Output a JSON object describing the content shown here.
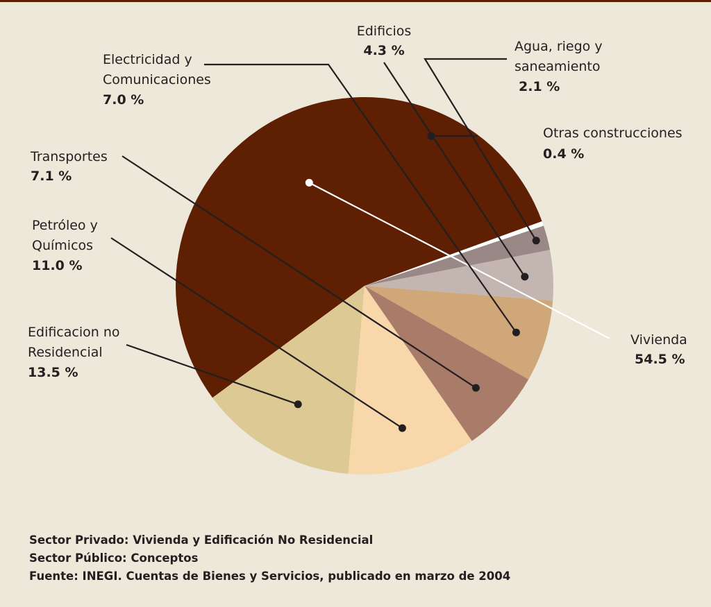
{
  "chart_data": {
    "type": "pie",
    "slices": [
      {
        "label_lines": [
          "Vivienda"
        ],
        "value_text": "54.5 %",
        "value": 54.5,
        "color": "#5e1f03"
      },
      {
        "label_lines": [
          "Edificacion no",
          "Residencial"
        ],
        "value_text": "13.5 %",
        "value": 13.5,
        "color": "#dcc993"
      },
      {
        "label_lines": [
          "Petróleo y",
          "Químicos"
        ],
        "value_text": "11.0 %",
        "value": 11.0,
        "color": "#f8d8ab"
      },
      {
        "label_lines": [
          "Transportes"
        ],
        "value_text": "7.1 %",
        "value": 7.1,
        "color": "#a87c68"
      },
      {
        "label_lines": [
          "Electricidad y",
          "Comunicaciones"
        ],
        "value_text": "7.0 %",
        "value": 7.0,
        "color": "#d0a779"
      },
      {
        "label_lines": [
          "Edificios"
        ],
        "value_text": "4.3 %",
        "value": 4.3,
        "color": "#c3b6b1"
      },
      {
        "label_lines": [
          "Agua, riego y",
          "saneamiento"
        ],
        "value_text": "2.1 %",
        "value": 2.1,
        "color": "#998885"
      },
      {
        "label_lines": [
          "Otras construcciones"
        ],
        "value_text": "0.4 %",
        "value": 0.4,
        "color": "#ffffff"
      }
    ],
    "start_angle_deg": 20,
    "direction": "counterclockwise"
  },
  "notes": {
    "line1": "Sector Privado: Vivienda y Edificación No Residencial",
    "line2": "Sector Público: Conceptos",
    "line3": "Fuente: INEGI. Cuentas de Bienes y Servicios, publicado en marzo de 2004"
  },
  "colors": {
    "background": "#ede8da",
    "text": "#231f20",
    "accent_rule": "#5e1f07"
  }
}
